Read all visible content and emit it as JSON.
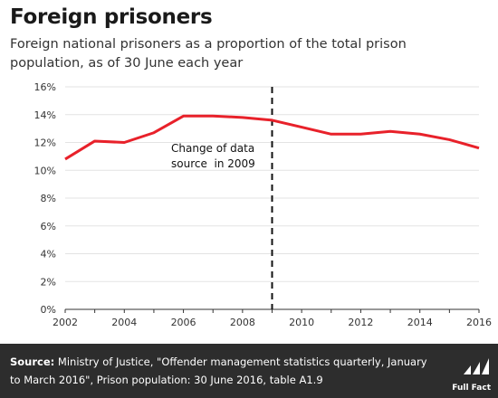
{
  "header": {
    "title": "Foreign prisoners",
    "subtitle": "Foreign national prisoners as a proportion of the total prison population, as of 30 June each year"
  },
  "chart_data": {
    "type": "line",
    "x": [
      2002,
      2003,
      2004,
      2005,
      2006,
      2007,
      2008,
      2009,
      2010,
      2011,
      2012,
      2013,
      2014,
      2015,
      2016
    ],
    "series": [
      {
        "values": [
          10.8,
          12.1,
          12.0,
          12.7,
          13.9,
          13.9,
          13.8,
          13.6,
          13.1,
          12.6,
          12.6,
          12.8,
          12.6,
          12.2,
          11.6
        ],
        "color": "#e8212a"
      }
    ],
    "xticks": [
      "2002",
      "2004",
      "2006",
      "2008",
      "2010",
      "2012",
      "2014",
      "2016"
    ],
    "yticks": [
      "0%",
      "2%",
      "4%",
      "6%",
      "8%",
      "10%",
      "12%",
      "14%",
      "16%"
    ],
    "xlim": [
      2002,
      2016
    ],
    "ylim": [
      0,
      16
    ],
    "grid": "horizontal",
    "annotation": {
      "x": 2009,
      "lines": [
        "Change of data",
        "source  in 2009"
      ]
    }
  },
  "footer": {
    "source_label": "Source:",
    "source_text": " Ministry of Justice, \"Offender management statistics quarterly, January to March 2016\", Prison population: 30 June 2016, table A1.9",
    "logo_text": "Full Fact"
  }
}
